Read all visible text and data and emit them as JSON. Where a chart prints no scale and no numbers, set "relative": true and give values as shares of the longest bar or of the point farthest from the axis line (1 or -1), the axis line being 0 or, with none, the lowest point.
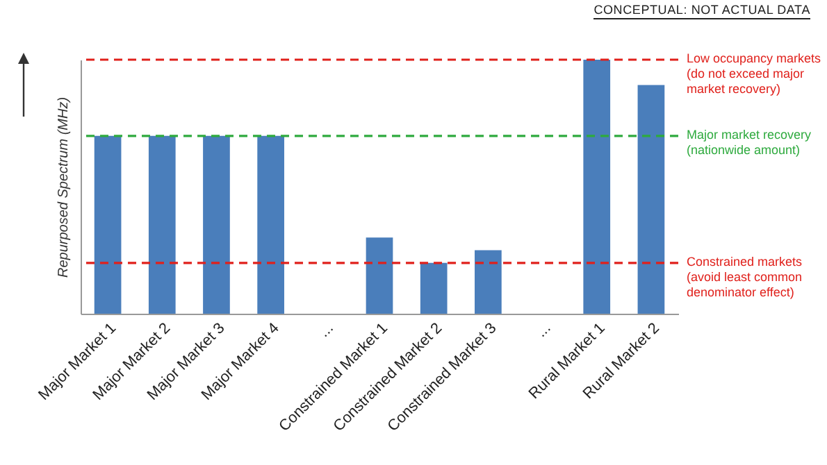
{
  "chart_data": {
    "type": "bar",
    "relative": true,
    "ylabel": "Repurposed Spectrum (MHz)",
    "annotations": [
      "CONCEPTUAL: NOT ACTUAL DATA"
    ],
    "categories": [
      "Major Market 1",
      "Major Market 2",
      "Major Market 3",
      "Major Market 4",
      "...",
      "Constrained Market 1",
      "Constrained Market 2",
      "Constrained Market 3",
      "... ",
      "Rural Market 1",
      "Rural Market 2"
    ],
    "values": [
      0.7,
      0.7,
      0.7,
      0.7,
      null,
      0.3,
      0.2,
      0.25,
      null,
      1,
      0.9
    ],
    "color": "#4a7ebb",
    "ref_lines": [
      {
        "axis": "y",
        "value": 1,
        "label": "Low occupancy markets\n(do not exceed major\nmarket recovery)",
        "color": "#e0201b",
        "line_style": "dashed"
      },
      {
        "axis": "y",
        "value": 0.7,
        "label": "Major market recovery\n(nationwide amount)",
        "color": "#2eaa3e",
        "line_style": "dashed"
      },
      {
        "axis": "y",
        "value": 0.2,
        "label": "Constrained markets\n(avoid least common\ndenominator effect)",
        "color": "#e0201b",
        "line_style": "dashed"
      }
    ]
  }
}
